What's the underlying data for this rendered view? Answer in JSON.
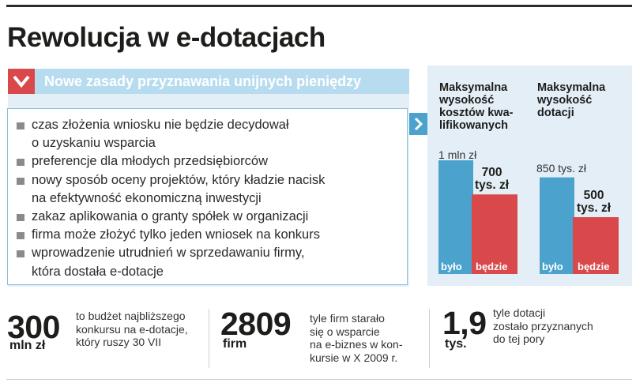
{
  "title": "Rewolucja w e-dotacjach",
  "banner": {
    "label": "Nowe zasady przyznawania unijnych pieniędzy",
    "icon": "chevron-down-icon"
  },
  "bullets": [
    {
      "lines": [
        "czas złożenia wniosku nie będzie decydował",
        "o uzyskaniu wsparcia"
      ]
    },
    {
      "lines": [
        "preferencje dla młodych przedsiębiorców"
      ]
    },
    {
      "lines": [
        "nowy sposób oceny projektów, który kładzie nacisk",
        "na efektywność ekonomiczną inwestycji"
      ]
    },
    {
      "lines": [
        "zakaz aplikowania o granty spółek w organizacji"
      ]
    },
    {
      "lines": [
        "firma może złożyć tylko jeden wniosek na konkurs"
      ]
    },
    {
      "lines": [
        "wprowadzenie utrudnień w sprzedawaniu firmy,",
        "która dostała e-dotacje"
      ]
    }
  ],
  "colors": {
    "blue": "#4ba3cd",
    "red": "#d9484a",
    "light_blue": "#b7dcef",
    "panel_bg": "#e3eef6"
  },
  "chart_data": {
    "type": "bar",
    "unit": "tys. zł",
    "ylim": [
      0,
      1000
    ],
    "groups": [
      {
        "heading": [
          "Maksymalna",
          "wysokość",
          "kosztów kwa-",
          "lifikowanych"
        ],
        "bars": [
          {
            "name": "było",
            "value": 1000,
            "value_label": "1 mln zł",
            "value_label_parts": [
              "1",
              "mln zł"
            ]
          },
          {
            "name": "będzie",
            "value": 700,
            "value_label": "700 tys. zł",
            "value_label_parts": [
              "700",
              "tys. zł"
            ]
          }
        ]
      },
      {
        "heading": [
          "Maksymalna",
          "wysokość",
          "dotacji"
        ],
        "bars": [
          {
            "name": "było",
            "value": 850,
            "value_label": "850 tys. zł",
            "value_label_parts": [
              "850",
              "tys. zł"
            ]
          },
          {
            "name": "będzie",
            "value": 500,
            "value_label": "500 tys. zł",
            "value_label_parts": [
              "500",
              "tys. zł"
            ]
          }
        ]
      }
    ]
  },
  "stats": [
    {
      "number": "300",
      "unit": "mln zł",
      "desc": [
        "to budżet najbliższego",
        "konkursu na e-dotacje,",
        "który ruszy 30 VII"
      ]
    },
    {
      "number": "2809",
      "unit": "firm",
      "desc": [
        "tyle firm starało",
        "się o wsparcie",
        "na e-biznes w kon-",
        "kursie w X 2009 r."
      ]
    },
    {
      "number": "1,9",
      "unit": "tys.",
      "desc": [
        "tyle dotacji",
        "zostało przyznanych",
        "do tej pory"
      ]
    }
  ]
}
